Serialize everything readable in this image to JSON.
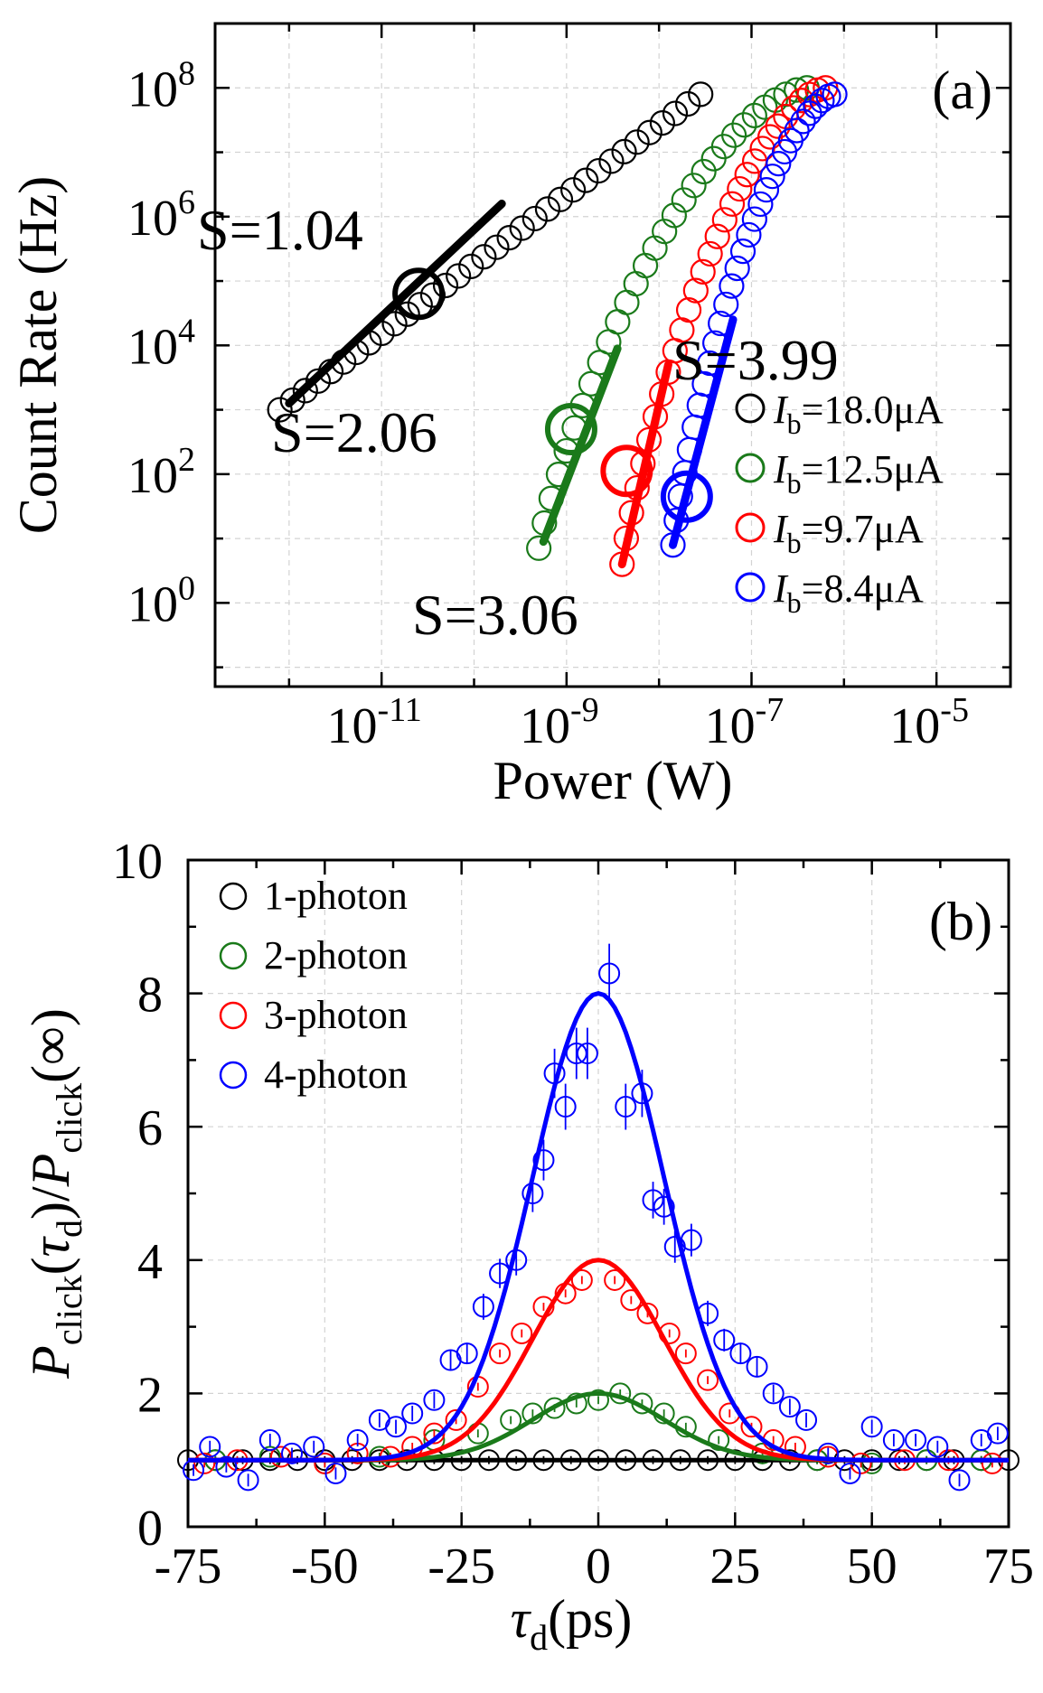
{
  "chart_data": [
    {
      "type": "scatter",
      "panel_label": "(a)",
      "xlabel": "Power (W)",
      "ylabel": "Count Rate (Hz)",
      "xscale": "log",
      "yscale": "log",
      "xlim_log10": [
        -12.8,
        -4.2
      ],
      "ylim_log10": [
        -1.3,
        9.0
      ],
      "x_ticks": [
        {
          "base": "10",
          "exp": "-11",
          "log": -11
        },
        {
          "base": "10",
          "exp": "-9",
          "log": -9
        },
        {
          "base": "10",
          "exp": "-7",
          "log": -7
        },
        {
          "base": "10",
          "exp": "-5",
          "log": -5
        }
      ],
      "y_ticks": [
        {
          "base": "10",
          "exp": "0",
          "log": 0
        },
        {
          "base": "10",
          "exp": "2",
          "log": 2
        },
        {
          "base": "10",
          "exp": "4",
          "log": 4
        },
        {
          "base": "10",
          "exp": "6",
          "log": 6
        },
        {
          "base": "10",
          "exp": "8",
          "log": 8
        }
      ],
      "grid": true,
      "legend_position": "right",
      "legend": [
        {
          "sym": "I",
          "sub": "b",
          "rest": "=18.0μA",
          "color": "#000000"
        },
        {
          "sym": "I",
          "sub": "b",
          "rest": "=12.5μA",
          "color": "#1a7a1a"
        },
        {
          "sym": "I",
          "sub": "b",
          "rest": "=9.7μA",
          "color": "#ff0000"
        },
        {
          "sym": "I",
          "sub": "b",
          "rest": "=8.4μA",
          "color": "#0000ff"
        }
      ],
      "series": [
        {
          "name": "Ib=18.0μA",
          "color": "#000000",
          "x_log10_start": -12.1,
          "x_log10_end": -7.55,
          "y_log10_start": 3.0,
          "y_log10_end": 7.9,
          "curve": "linear",
          "fit": {
            "slope_label": "S=1.04",
            "x_log10": [
              -12.0,
              -9.7
            ],
            "y_log10": [
              3.1,
              6.2
            ],
            "marker": [
              -10.6,
              4.8
            ]
          }
        },
        {
          "name": "Ib=12.5μA",
          "color": "#1a7a1a",
          "x_log10_start": -9.3,
          "x_log10_end": -6.4,
          "y_log10_start": 0.85,
          "y_log10_end": 8.0,
          "curve": "saturating",
          "fit": {
            "slope_label": "S=2.06",
            "x_log10": [
              -9.25,
              -8.45
            ],
            "y_log10": [
              0.95,
              3.95
            ],
            "marker": [
              -8.95,
              2.7
            ]
          }
        },
        {
          "name": "Ib=9.7μA",
          "color": "#ff0000",
          "x_log10_start": -8.4,
          "x_log10_end": -6.2,
          "y_log10_start": 0.6,
          "y_log10_end": 8.0,
          "curve": "saturating",
          "fit": {
            "slope_label": "S=3.06",
            "x_log10": [
              -8.4,
              -7.9
            ],
            "y_log10": [
              0.6,
              3.7
            ],
            "marker": [
              -8.35,
              2.05
            ]
          }
        },
        {
          "name": "Ib=8.4μA",
          "color": "#0000ff",
          "x_log10_start": -7.85,
          "x_log10_end": -6.1,
          "y_log10_start": 0.9,
          "y_log10_end": 7.9,
          "curve": "saturating",
          "fit": {
            "slope_label": "S=3.99",
            "x_log10": [
              -7.85,
              -7.2
            ],
            "y_log10": [
              0.9,
              4.4
            ],
            "marker": [
              -7.7,
              1.65
            ]
          }
        }
      ]
    },
    {
      "type": "scatter",
      "panel_label": "(b)",
      "xlabel": "(ps)",
      "xlabel_sym": "τ",
      "xlabel_sub": "d",
      "ylabel_parts": {
        "p": "P",
        "sub1": "click",
        "tau": "τ",
        "sub2": "d",
        "slash": "/",
        "p2": "P",
        "sub3": "click",
        "inf": "(∞)"
      },
      "xlim": [
        -75,
        75
      ],
      "ylim": [
        0,
        10
      ],
      "x_ticks": [
        -75,
        -50,
        -25,
        0,
        25,
        50,
        75
      ],
      "y_ticks": [
        0,
        2,
        4,
        6,
        8,
        10
      ],
      "grid": true,
      "legend_position": "top-left",
      "legend": [
        {
          "label": "1-photon",
          "color": "#000000"
        },
        {
          "label": "2-photon",
          "color": "#1a7a1a"
        },
        {
          "label": "3-photon",
          "color": "#ff0000"
        },
        {
          "label": "4-photon",
          "color": "#0000ff"
        }
      ],
      "series": [
        {
          "name": "1-photon",
          "color": "#000000",
          "peak": 1,
          "sigma": 12,
          "x": [
            -75,
            -70,
            -65,
            -60,
            -55,
            -50,
            -45,
            -40,
            -35,
            -30,
            -25,
            -20,
            -15,
            -10,
            -5,
            0,
            5,
            10,
            15,
            20,
            25,
            30,
            35,
            40,
            45,
            50,
            55,
            60,
            65,
            70,
            75
          ],
          "y": [
            1,
            1,
            1,
            1,
            1,
            1,
            1,
            1,
            1,
            1,
            1,
            1,
            1,
            1,
            1,
            1,
            1,
            1,
            1,
            1,
            1,
            1,
            1,
            1,
            1,
            1,
            1,
            1,
            1,
            1,
            1
          ]
        },
        {
          "name": "2-photon",
          "color": "#1a7a1a",
          "peak": 2,
          "sigma": 12,
          "x": [
            -70,
            -60,
            -50,
            -40,
            -30,
            -22,
            -16,
            -12,
            -8,
            -4,
            0,
            4,
            8,
            12,
            16,
            22,
            30,
            40,
            50,
            60,
            70
          ],
          "y": [
            1.0,
            1.05,
            0.95,
            1.05,
            1.3,
            1.4,
            1.6,
            1.7,
            1.78,
            1.85,
            1.9,
            2.0,
            1.85,
            1.7,
            1.5,
            1.3,
            1.1,
            1.0,
            0.95,
            1.0,
            1.0
          ]
        },
        {
          "name": "3-photon",
          "color": "#ff0000",
          "peak": 4,
          "sigma": 12,
          "x": [
            -72,
            -66,
            -58,
            -50,
            -44,
            -38,
            -34,
            -30,
            -26,
            -22,
            -18,
            -14,
            -10,
            -6,
            -3,
            3,
            6,
            9,
            13,
            16,
            20,
            24,
            28,
            32,
            36,
            42,
            48,
            56,
            64,
            72
          ],
          "y": [
            0.95,
            1.0,
            1.05,
            0.95,
            1.1,
            1.05,
            1.2,
            1.4,
            1.6,
            2.1,
            2.6,
            2.9,
            3.3,
            3.5,
            3.7,
            3.7,
            3.4,
            3.2,
            2.9,
            2.6,
            2.2,
            1.7,
            1.5,
            1.3,
            1.2,
            1.05,
            0.95,
            1.0,
            1.0,
            0.95
          ]
        },
        {
          "name": "4-photon",
          "color": "#0000ff",
          "peak": 8,
          "sigma": 12,
          "x": [
            -74,
            -71,
            -68,
            -64,
            -60,
            -56,
            -52,
            -48,
            -44,
            -40,
            -37,
            -34,
            -30,
            -27,
            -24,
            -21,
            -18,
            -15,
            -12,
            -10,
            -8,
            -6,
            -4,
            -2,
            2,
            5,
            8,
            10,
            12,
            14,
            17,
            20,
            23,
            26,
            29,
            32,
            35,
            38,
            42,
            46,
            50,
            54,
            58,
            62,
            66,
            70,
            73
          ],
          "y": [
            0.85,
            1.2,
            0.9,
            0.7,
            1.3,
            1.1,
            1.2,
            0.8,
            1.3,
            1.6,
            1.5,
            1.7,
            1.9,
            2.5,
            2.6,
            3.3,
            3.8,
            4.0,
            5.0,
            5.5,
            6.8,
            6.3,
            7.1,
            7.1,
            8.3,
            6.3,
            6.5,
            4.9,
            4.8,
            4.2,
            4.3,
            3.2,
            2.8,
            2.6,
            2.4,
            2.0,
            1.8,
            1.6,
            1.1,
            0.8,
            1.5,
            1.3,
            1.3,
            1.2,
            0.7,
            1.3,
            1.4
          ]
        }
      ]
    }
  ]
}
